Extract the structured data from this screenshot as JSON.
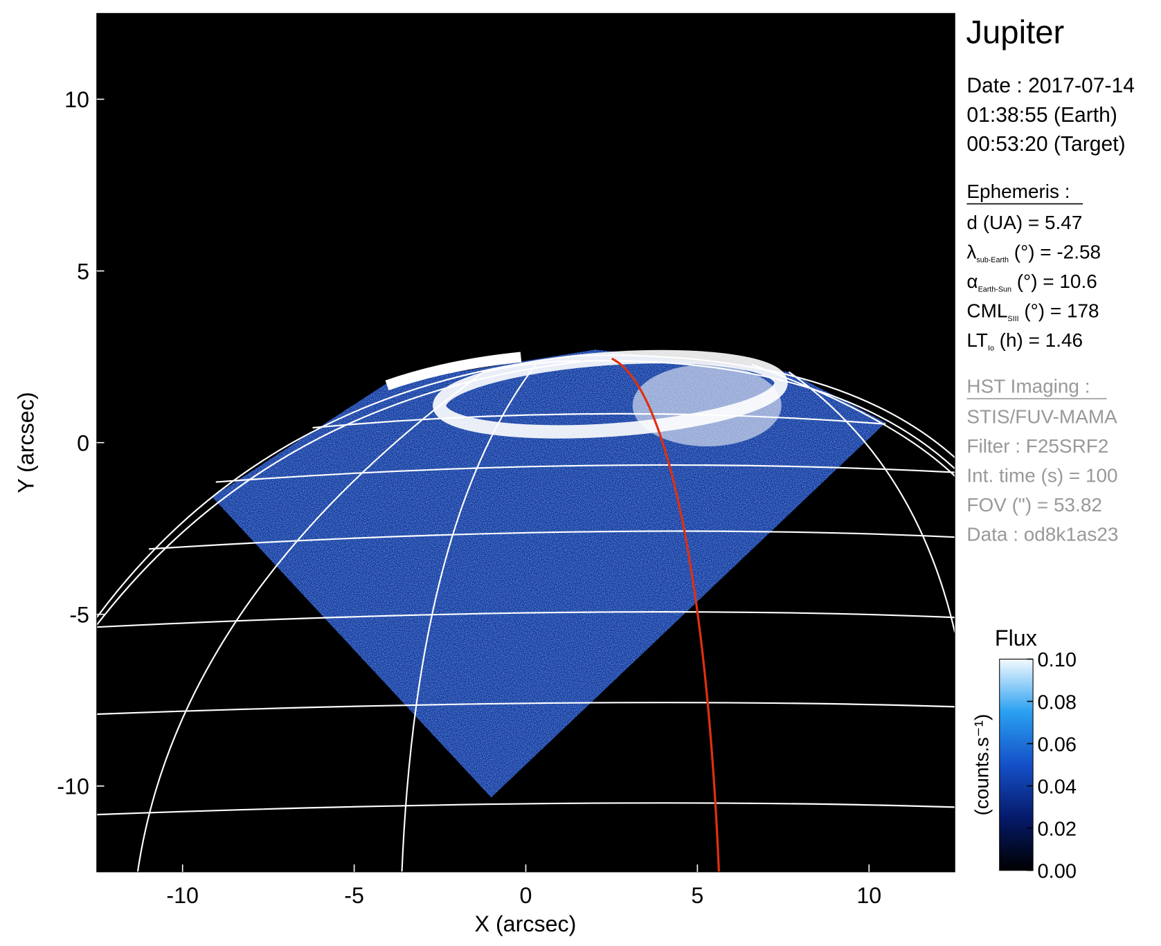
{
  "chart_data": {
    "type": "image",
    "xlabel": "X (arcsec)",
    "ylabel": "Y (arcsec)",
    "xlim": [
      -12.5,
      12.5
    ],
    "ylim": [
      -12.5,
      12.5
    ],
    "xticks": [
      -10,
      -5,
      0,
      5,
      10
    ],
    "yticks": [
      -10,
      -5,
      0,
      5,
      10
    ],
    "colorbar": {
      "title": "Flux",
      "label": "(counts.s⁻¹)",
      "lim": [
        0,
        0.1
      ],
      "ticks": [
        {
          "value": 0,
          "label": "0.00"
        },
        {
          "value": 0.02,
          "label": "0.02"
        },
        {
          "value": 0.04,
          "label": "0.04"
        },
        {
          "value": 0.06,
          "label": "0.06"
        },
        {
          "value": 0.08,
          "label": "0.08"
        },
        {
          "value": 0.1,
          "label": "0.10"
        }
      ]
    }
  },
  "info": {
    "title": "Jupiter",
    "date": [
      "Date : 2017-07-14",
      "01:38:55 (Earth)",
      "00:53:20 (Target)"
    ],
    "ephemeris": {
      "heading": "Ephemeris :",
      "rows": [
        {
          "main": "d (UA)    = 5.47"
        },
        {
          "main": "λ",
          "sub": "sub-Earth",
          "rest": " (°) = -2.58"
        },
        {
          "main": "α",
          "sub": "Earth-Sun",
          "rest": " (°) = 10.6"
        },
        {
          "main": "CML",
          "sub": "SIII",
          "rest": " (°) = 178"
        },
        {
          "main": "LT",
          "sub": "Io",
          "rest": " (h) = 1.46"
        }
      ]
    },
    "imaging": {
      "heading": "HST Imaging :",
      "rows": [
        "STIS/FUV-MAMA",
        "Filter : F25SRF2",
        "Int. time (s) = 100",
        "FOV (\") = 53.82",
        "Data : od8k1as23"
      ]
    }
  }
}
